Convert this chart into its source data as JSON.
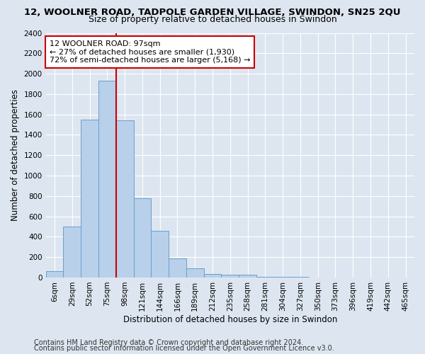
{
  "title_line1": "12, WOOLNER ROAD, TADPOLE GARDEN VILLAGE, SWINDON, SN25 2QU",
  "title_line2": "Size of property relative to detached houses in Swindon",
  "xlabel": "Distribution of detached houses by size in Swindon",
  "ylabel": "Number of detached properties",
  "footer_line1": "Contains HM Land Registry data © Crown copyright and database right 2024.",
  "footer_line2": "Contains public sector information licensed under the Open Government Licence v3.0.",
  "categories": [
    "6sqm",
    "29sqm",
    "52sqm",
    "75sqm",
    "98sqm",
    "121sqm",
    "144sqm",
    "166sqm",
    "189sqm",
    "212sqm",
    "235sqm",
    "258sqm",
    "281sqm",
    "304sqm",
    "327sqm",
    "350sqm",
    "373sqm",
    "396sqm",
    "419sqm",
    "442sqm",
    "465sqm"
  ],
  "values": [
    60,
    500,
    1550,
    1930,
    1540,
    780,
    460,
    190,
    90,
    35,
    30,
    25,
    5,
    5,
    5,
    0,
    0,
    0,
    0,
    0,
    0
  ],
  "bar_color": "#b8d0ea",
  "bar_edge_color": "#6aa0cc",
  "vline_x_index": 4,
  "vline_color": "#cc0000",
  "annotation_text": "12 WOOLNER ROAD: 97sqm\n← 27% of detached houses are smaller (1,930)\n72% of semi-detached houses are larger (5,168) →",
  "annotation_box_facecolor": "#ffffff",
  "annotation_box_edgecolor": "#cc0000",
  "ylim": [
    0,
    2400
  ],
  "yticks": [
    0,
    200,
    400,
    600,
    800,
    1000,
    1200,
    1400,
    1600,
    1800,
    2000,
    2200,
    2400
  ],
  "background_color": "#dde6f0",
  "plot_bg_color": "#dde6f0",
  "title_fontsize": 9.5,
  "subtitle_fontsize": 9,
  "axis_label_fontsize": 8.5,
  "tick_fontsize": 7.5,
  "annotation_fontsize": 8,
  "footer_fontsize": 7
}
